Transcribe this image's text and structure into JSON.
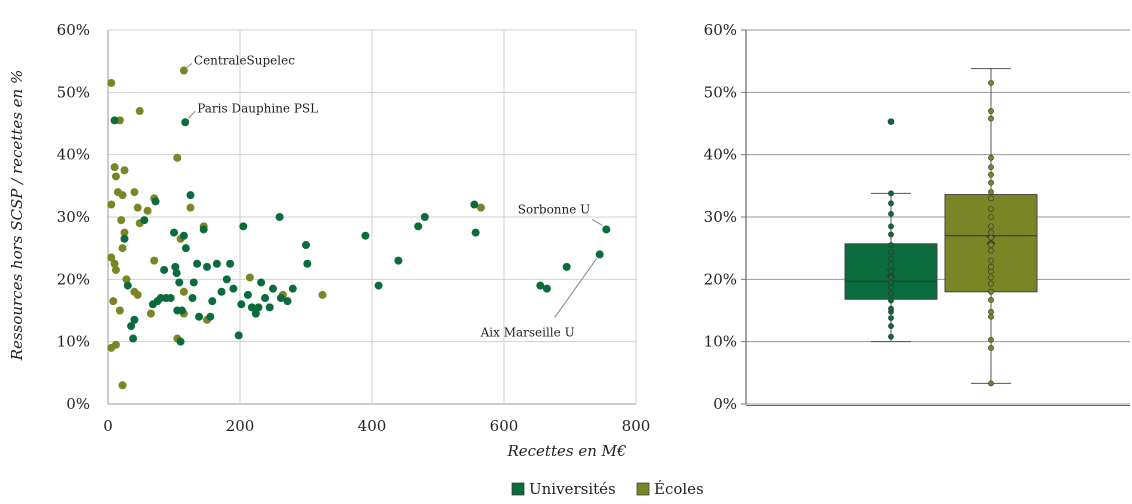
{
  "colors": {
    "universites": "#0a6b3c",
    "ecoles": "#7a8526",
    "grid": "#d0d0d0",
    "axis": "#999999"
  },
  "legend": {
    "position": "bottom-center",
    "items": [
      {
        "label": "Universités",
        "color": "#0a6b3c"
      },
      {
        "label": "Écoles",
        "color": "#7a8526"
      }
    ]
  },
  "chart_data": [
    {
      "type": "scatter",
      "title": "",
      "xlabel": "Recettes en M€",
      "ylabel": "Ressources hors SCSP / recettes en %",
      "xlim": [
        0,
        800
      ],
      "ylim": [
        0,
        60
      ],
      "xticks": [
        "0",
        "200",
        "400",
        "600",
        "800"
      ],
      "yticks": [
        "0%",
        "10%",
        "20%",
        "30%",
        "40%",
        "50%",
        "60%"
      ],
      "grid": true,
      "series": [
        {
          "name": "Universités",
          "points": [
            [
              10,
              45.5
            ],
            [
              117,
              45.2
            ],
            [
              25,
              26.5
            ],
            [
              35,
              12.5
            ],
            [
              38,
              10.5
            ],
            [
              40,
              13.5
            ],
            [
              30,
              19
            ],
            [
              55,
              29.5
            ],
            [
              68,
              16
            ],
            [
              72,
              32.5
            ],
            [
              75,
              16.5
            ],
            [
              80,
              17
            ],
            [
              85,
              21.5
            ],
            [
              88,
              17
            ],
            [
              95,
              17
            ],
            [
              100,
              27.5
            ],
            [
              102,
              22
            ],
            [
              104,
              21
            ],
            [
              105,
              15
            ],
            [
              108,
              19.5
            ],
            [
              110,
              10
            ],
            [
              112,
              15
            ],
            [
              115,
              27
            ],
            [
              118,
              25
            ],
            [
              125,
              33.5
            ],
            [
              128,
              17
            ],
            [
              130,
              19.5
            ],
            [
              135,
              22.5
            ],
            [
              138,
              14
            ],
            [
              145,
              28
            ],
            [
              150,
              22
            ],
            [
              155,
              14
            ],
            [
              158,
              16.5
            ],
            [
              165,
              22.5
            ],
            [
              172,
              18
            ],
            [
              180,
              20
            ],
            [
              185,
              22.5
            ],
            [
              190,
              18.5
            ],
            [
              198,
              11
            ],
            [
              202,
              16
            ],
            [
              205,
              28.5
            ],
            [
              212,
              17.5
            ],
            [
              218,
              15.5
            ],
            [
              224,
              14.5
            ],
            [
              228,
              15.5
            ],
            [
              232,
              19.5
            ],
            [
              238,
              17
            ],
            [
              245,
              15.5
            ],
            [
              250,
              18.5
            ],
            [
              260,
              30
            ],
            [
              262,
              17
            ],
            [
              272,
              16.5
            ],
            [
              280,
              18.5
            ],
            [
              300,
              25.5
            ],
            [
              302,
              22.5
            ],
            [
              390,
              27
            ],
            [
              410,
              19
            ],
            [
              440,
              23
            ],
            [
              470,
              28.5
            ],
            [
              480,
              30
            ],
            [
              555,
              32
            ],
            [
              557,
              27.5
            ],
            [
              655,
              19
            ],
            [
              665,
              18.5
            ],
            [
              695,
              22
            ],
            [
              745,
              24
            ],
            [
              755,
              28
            ]
          ]
        },
        {
          "name": "Écoles",
          "points": [
            [
              5,
              51.5
            ],
            [
              18,
              45.5
            ],
            [
              48,
              47
            ],
            [
              115,
              53.5
            ],
            [
              105,
              39.5
            ],
            [
              10,
              38
            ],
            [
              25,
              37.5
            ],
            [
              12,
              36.5
            ],
            [
              15,
              34
            ],
            [
              22,
              33.5
            ],
            [
              40,
              34
            ],
            [
              70,
              33
            ],
            [
              5,
              32
            ],
            [
              45,
              31.5
            ],
            [
              60,
              31
            ],
            [
              125,
              31.5
            ],
            [
              565,
              31.5
            ],
            [
              20,
              29.5
            ],
            [
              48,
              29
            ],
            [
              145,
              28.5
            ],
            [
              25,
              27.5
            ],
            [
              110,
              26.5
            ],
            [
              22,
              25
            ],
            [
              5,
              23.5
            ],
            [
              70,
              23
            ],
            [
              10,
              22.5
            ],
            [
              12,
              21.5
            ],
            [
              28,
              20
            ],
            [
              40,
              18
            ],
            [
              45,
              17.5
            ],
            [
              115,
              18
            ],
            [
              265,
              17.5
            ],
            [
              325,
              17.5
            ],
            [
              8,
              16.5
            ],
            [
              18,
              15
            ],
            [
              65,
              14.5
            ],
            [
              115,
              14.5
            ],
            [
              150,
              13.5
            ],
            [
              105,
              10.5
            ],
            [
              12,
              9.5
            ],
            [
              5,
              9
            ],
            [
              22,
              3
            ],
            [
              215,
              20.3
            ]
          ]
        }
      ],
      "annotations": [
        {
          "text": "CentraleSupelec",
          "x": 115,
          "y": 53.5
        },
        {
          "text": "Paris Dauphine PSL",
          "x": 117,
          "y": 45.2
        },
        {
          "text": "Sorbonne U",
          "x": 755,
          "y": 28
        },
        {
          "text": "Aix Marseille U",
          "x": 745,
          "y": 24
        }
      ]
    },
    {
      "type": "box",
      "title": "",
      "ylim": [
        0,
        60
      ],
      "yticks": [
        "0%",
        "10%",
        "20%",
        "30%",
        "40%",
        "50%",
        "60%"
      ],
      "grid": true,
      "boxes": [
        {
          "name": "Universités",
          "min": 10,
          "q1": 16.8,
          "median": 19.7,
          "mean": 21,
          "q3": 25.7,
          "max": 33.8,
          "outliers": [
            45.3
          ],
          "points": [
            10.8,
            12.5,
            13.8,
            14.8,
            15.3,
            16.6,
            17.7,
            18.7,
            19.5,
            20.3,
            21.3,
            22.3,
            23.3,
            24.3,
            25.5,
            27.2,
            28.5,
            30.5,
            32.2,
            33.8
          ]
        },
        {
          "name": "Écoles",
          "min": 3.3,
          "q1": 18,
          "median": 27,
          "mean": 26.3,
          "q3": 33.6,
          "max": 53.8,
          "outliers": [],
          "points": [
            3.3,
            9,
            10.3,
            14,
            14.8,
            16.7,
            18,
            19.3,
            20.3,
            21.3,
            22,
            23,
            24.6,
            25.5,
            26.7,
            27.5,
            28.5,
            30,
            31.3,
            33,
            34,
            35.5,
            36.8,
            38,
            39.5,
            45.8,
            47,
            51.5
          ]
        }
      ]
    }
  ]
}
